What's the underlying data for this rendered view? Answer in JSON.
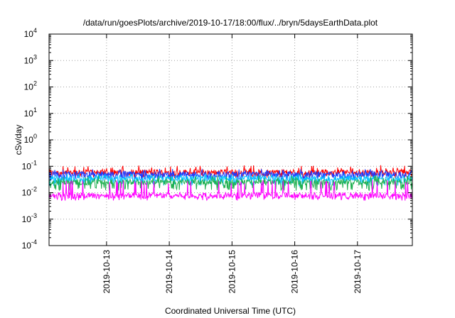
{
  "chart_data": {
    "type": "line",
    "title": "/data/run/goesPlots/archive/2019-10-17/18:00/flux/../bryn/5daysEarthData.plot",
    "xlabel": "Coordinated Universal Time (UTC)",
    "ylabel": "cSv/day",
    "y_scale": "log",
    "ylim": [
      0.0001,
      10000
    ],
    "xlim": [
      "2019-10-12 02:00",
      "2019-10-17 21:00"
    ],
    "x_ticks": [
      "2019-10-13",
      "2019-10-14",
      "2019-10-15",
      "2019-10-16",
      "2019-10-17"
    ],
    "y_ticks": [
      {
        "value": 0.0001,
        "base": "10",
        "exp": "-4"
      },
      {
        "value": 0.001,
        "base": "10",
        "exp": "-3"
      },
      {
        "value": 0.01,
        "base": "10",
        "exp": "-2"
      },
      {
        "value": 0.1,
        "base": "10",
        "exp": "-1"
      },
      {
        "value": 1,
        "base": "10",
        "exp": "0"
      },
      {
        "value": 10,
        "base": "10",
        "exp": "1"
      },
      {
        "value": 100,
        "base": "10",
        "exp": "2"
      },
      {
        "value": 1000,
        "base": "10",
        "exp": "3"
      },
      {
        "value": 10000,
        "base": "10",
        "exp": "4"
      }
    ],
    "grid": true,
    "legend": "none",
    "series": [
      {
        "color": "#ff0000",
        "typical": 0.06,
        "min": 0.035,
        "max": 0.11
      },
      {
        "color": "#1e3cff",
        "typical": 0.05,
        "min": 0.03,
        "max": 0.08
      },
      {
        "color": "#00c0ff",
        "typical": 0.035,
        "min": 0.018,
        "max": 0.055
      },
      {
        "color": "#20b050",
        "typical": 0.025,
        "min": 0.012,
        "max": 0.045
      },
      {
        "color": "#ff00ff",
        "typical": 0.008,
        "min": 0.005,
        "max": 0.03
      }
    ]
  }
}
